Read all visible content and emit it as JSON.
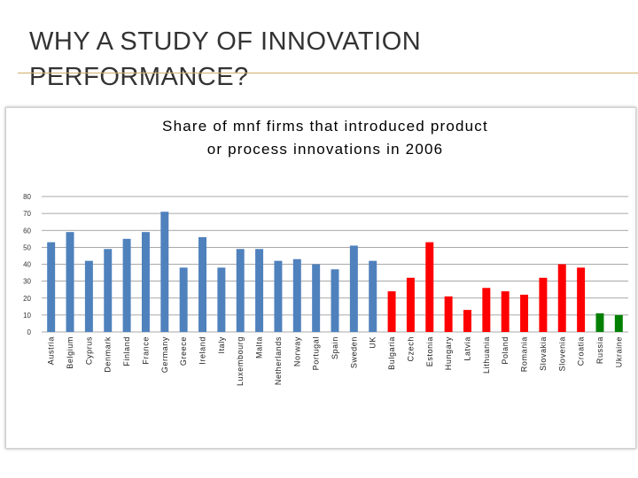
{
  "slide": {
    "title_line1": "WHY A STUDY OF INNOVATION",
    "title_line2": "PERFORMANCE?"
  },
  "chart_data": {
    "type": "bar",
    "title_lines": [
      "Share of mnf firms that introduced product",
      "or process innovations in 2006"
    ],
    "categories": [
      "Austria",
      "Belgium",
      "Cyprus",
      "Denmark",
      "Finland",
      "France",
      "Germany",
      "Greece",
      "Ireland",
      "Italy",
      "Luxembourg",
      "Malta",
      "Netherlands",
      "Norway",
      "Portugal",
      "Spain",
      "Sweden",
      "UK",
      "Bulgaria",
      "Czech",
      "Estonia",
      "Hungary",
      "Latvia",
      "Lithuania",
      "Poland",
      "Romania",
      "Slovakia",
      "Slovenia",
      "Croatia",
      "Russia",
      "Ukraine"
    ],
    "values": [
      53,
      59,
      42,
      49,
      55,
      59,
      71,
      38,
      56,
      38,
      49,
      49,
      42,
      43,
      40,
      37,
      51,
      42,
      24,
      32,
      53,
      21,
      13,
      26,
      24,
      22,
      32,
      40,
      38,
      11,
      10
    ],
    "colors": [
      "#4f81bd",
      "#4f81bd",
      "#4f81bd",
      "#4f81bd",
      "#4f81bd",
      "#4f81bd",
      "#4f81bd",
      "#4f81bd",
      "#4f81bd",
      "#4f81bd",
      "#4f81bd",
      "#4f81bd",
      "#4f81bd",
      "#4f81bd",
      "#4f81bd",
      "#4f81bd",
      "#4f81bd",
      "#4f81bd",
      "#ff0000",
      "#ff0000",
      "#ff0000",
      "#ff0000",
      "#ff0000",
      "#ff0000",
      "#ff0000",
      "#ff0000",
      "#ff0000",
      "#ff0000",
      "#ff0000",
      "#008000",
      "#008000"
    ],
    "yticks": [
      0,
      10,
      20,
      30,
      40,
      50,
      60,
      70,
      80
    ],
    "ylim": [
      0,
      80
    ],
    "grid": true,
    "legend": false
  }
}
